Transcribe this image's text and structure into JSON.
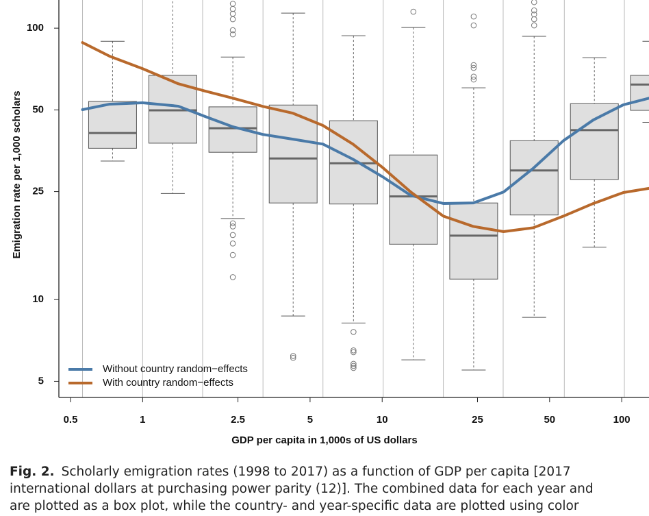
{
  "chart_data": {
    "type": "box",
    "xlabel": "GDP per capita in 1,000s of US dollars",
    "ylabel": "Emigration rate per 1,000 scholars",
    "xscale": "log",
    "yscale": "log",
    "xlim": [
      0.447,
      130
    ],
    "ylim": [
      4.36,
      127
    ],
    "xticks": [
      0.5,
      1,
      2.5,
      5,
      10,
      25,
      50,
      100
    ],
    "yticks": [
      5,
      10,
      25,
      50,
      100
    ],
    "xgrid": [
      0.561,
      1,
      1.78,
      3.18,
      5.66,
      10.1,
      18,
      32,
      57.6,
      102.6
    ],
    "legend": "lower left",
    "box_width": 0.2,
    "boxes": [
      {
        "x": 0.749,
        "whislo": 32.4,
        "q1": 36.1,
        "med": 41.1,
        "q3": 53.7,
        "whishi": 89.5,
        "fliers": []
      },
      {
        "x": 1.336,
        "whislo": 24.6,
        "q1": 37.7,
        "med": 49.8,
        "q3": 67,
        "whishi": 130,
        "fliers": []
      },
      {
        "x": 2.38,
        "whislo": 19.9,
        "q1": 34.9,
        "med": 42.8,
        "q3": 51.3,
        "whishi": 78.3,
        "fliers": [
          123,
          117.7,
          113,
          107.9,
          98.3,
          94.9,
          19.1,
          18.6,
          17.3,
          16.1,
          14.6,
          12.1
        ]
      },
      {
        "x": 4.25,
        "whislo": 8.7,
        "q1": 22.7,
        "med": 33.1,
        "q3": 52.1,
        "whishi": 113.6,
        "fliers": [
          6.2,
          6.1
        ]
      },
      {
        "x": 7.59,
        "whislo": 8.2,
        "q1": 22.5,
        "med": 31.8,
        "q3": 45.6,
        "whishi": 93.8,
        "fliers": [
          7.6,
          6.5,
          6.4,
          5.8,
          5.7,
          5.6
        ]
      },
      {
        "x": 13.5,
        "whislo": 6.0,
        "q1": 16.0,
        "med": 24.0,
        "q3": 34.1,
        "whishi": 100.6,
        "fliers": [
          115
        ]
      },
      {
        "x": 24.1,
        "whislo": 5.5,
        "q1": 11.9,
        "med": 17.2,
        "q3": 22.7,
        "whishi": 60.3,
        "fliers": [
          110.4,
          102.4,
          73.1,
          71.4,
          66.3,
          64.7
        ]
      },
      {
        "x": 43.1,
        "whislo": 8.6,
        "q1": 20.5,
        "med": 29.9,
        "q3": 38.5,
        "whishi": 93.3,
        "fliers": [
          124.7,
          116.3,
          112.4,
          107.9,
          102.4
        ]
      },
      {
        "x": 76.9,
        "whislo": 15.6,
        "q1": 27.7,
        "med": 42.1,
        "q3": 52.7,
        "whishi": 77.8,
        "fliers": []
      },
      {
        "x": 137,
        "whislo": 45,
        "q1": 49.8,
        "med": 62,
        "q3": 67,
        "whishi": 89.5,
        "fliers": []
      }
    ],
    "series": [
      {
        "name": "Without country random−effects",
        "color": "#4a7aa8",
        "x": [
          0.561,
          0.729,
          1,
          1.408,
          1.831,
          2.383,
          3.178,
          4.24,
          5.66,
          7.55,
          10.07,
          13.17,
          18.0,
          24.0,
          32.1,
          42.8,
          57.1,
          76.1,
          101.6,
          130
        ],
        "values": [
          50.1,
          52.5,
          53.1,
          51.6,
          47.2,
          43.3,
          40.6,
          39.0,
          37.4,
          32.9,
          28.3,
          24.2,
          22.6,
          22.7,
          24.9,
          30.5,
          38.5,
          45.9,
          52.2,
          55.2
        ]
      },
      {
        "name": "With country random−effects",
        "color": "#b8692c",
        "x": [
          0.561,
          0.729,
          1,
          1.408,
          1.831,
          2.383,
          3.178,
          4.24,
          5.66,
          7.55,
          10.07,
          13.17,
          18.0,
          24.0,
          32.1,
          42.8,
          57.1,
          76.1,
          101.6,
          130
        ],
        "values": [
          88.5,
          78.8,
          70.9,
          62.4,
          58.6,
          55.2,
          51.5,
          48.6,
          43.8,
          37.4,
          30.6,
          24.9,
          20.3,
          18.6,
          17.8,
          18.4,
          20.3,
          22.6,
          24.8,
          25.7
        ]
      }
    ]
  },
  "caption": {
    "label": "Fig. 2.",
    "lines": [
      "Scholarly emigration rates (1998 to 2017) as a function of GDP per capita [2017",
      "international dollars at purchasing power parity (12)]. The combined data for each year and",
      "are plotted as a box plot, while the country- and year-specific data are plotted using color"
    ]
  }
}
